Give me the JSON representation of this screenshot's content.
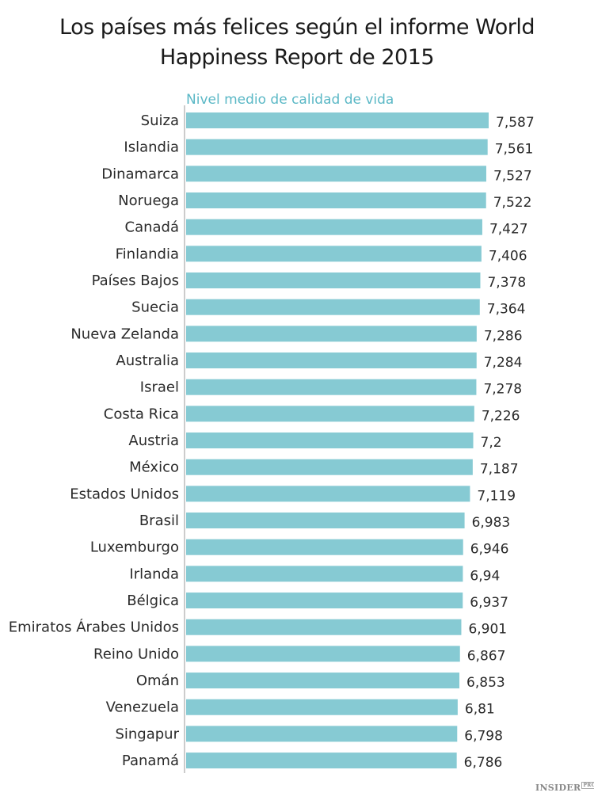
{
  "chart_data": {
    "type": "bar",
    "orientation": "horizontal",
    "title": [
      "Los países más felices según el informe World",
      "Happiness Report de 2015"
    ],
    "series_label": "Nivel medio de calidad de vida",
    "categories": [
      "Suiza",
      "Islandia",
      "Dinamarca",
      "Noruega",
      "Canadá",
      "Finlandia",
      "Países Bajos",
      "Suecia",
      "Nueva Zelanda",
      "Australia",
      "Israel",
      "Costa Rica",
      "Austria",
      "México",
      "Estados Unidos",
      "Brasil",
      "Luxemburgo",
      "Irlanda",
      "Bélgica",
      "Emiratos Árabes Unidos",
      "Reino Unido",
      "Omán",
      "Venezuela",
      "Singapur",
      "Panamá"
    ],
    "values": [
      7.587,
      7.561,
      7.527,
      7.522,
      7.427,
      7.406,
      7.378,
      7.364,
      7.286,
      7.284,
      7.278,
      7.226,
      7.2,
      7.187,
      7.119,
      6.983,
      6.946,
      6.94,
      6.937,
      6.901,
      6.867,
      6.853,
      6.81,
      6.798,
      6.786
    ],
    "value_labels": [
      "7,587",
      "7,561",
      "7,527",
      "7,522",
      "7,427",
      "7,406",
      "7,378",
      "7,364",
      "7,286",
      "7,284",
      "7,278",
      "7,226",
      "7,2",
      "7,187",
      "7,119",
      "6,983",
      "6,946",
      "6,94",
      "6,937",
      "6,901",
      "6,867",
      "6,853",
      "6,81",
      "6,798",
      "6,786"
    ],
    "xlim": [
      0,
      7.587
    ],
    "grid": false,
    "legend": "none",
    "colors": {
      "bar": "#86cad3",
      "series_label": "#5bb8c6",
      "text": "#2a2a2a",
      "axis": "#999999"
    }
  },
  "branding": {
    "logo_text": "INSIDER",
    "logo_badge": "PRO"
  }
}
